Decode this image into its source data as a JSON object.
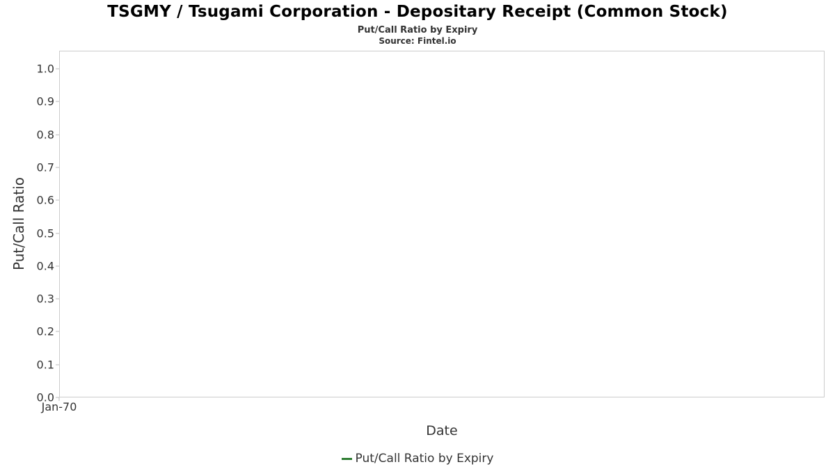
{
  "chart_data": {
    "type": "line",
    "title": "TSGMY / Tsugami Corporation - Depositary Receipt (Common Stock)",
    "subtitle": "Put/Call Ratio by Expiry",
    "source": "Source: Fintel.io",
    "xlabel": "Date",
    "ylabel": "Put/Call Ratio",
    "ylim": [
      0.0,
      1.0
    ],
    "ytick_step": 0.1,
    "yticks": [
      "1.0",
      "0.9",
      "0.8",
      "0.7",
      "0.6",
      "0.5",
      "0.4",
      "0.3",
      "0.2",
      "0.1",
      "0.0"
    ],
    "xticks": [
      "Jan-70"
    ],
    "grid": false,
    "plot_border_color": "#cccccc",
    "series": [
      {
        "name": "Put/Call Ratio by Expiry",
        "color": "#2e7d32",
        "x": [],
        "values": []
      }
    ],
    "legend": {
      "position": "bottom",
      "entries": [
        "Put/Call Ratio by Expiry"
      ]
    }
  }
}
